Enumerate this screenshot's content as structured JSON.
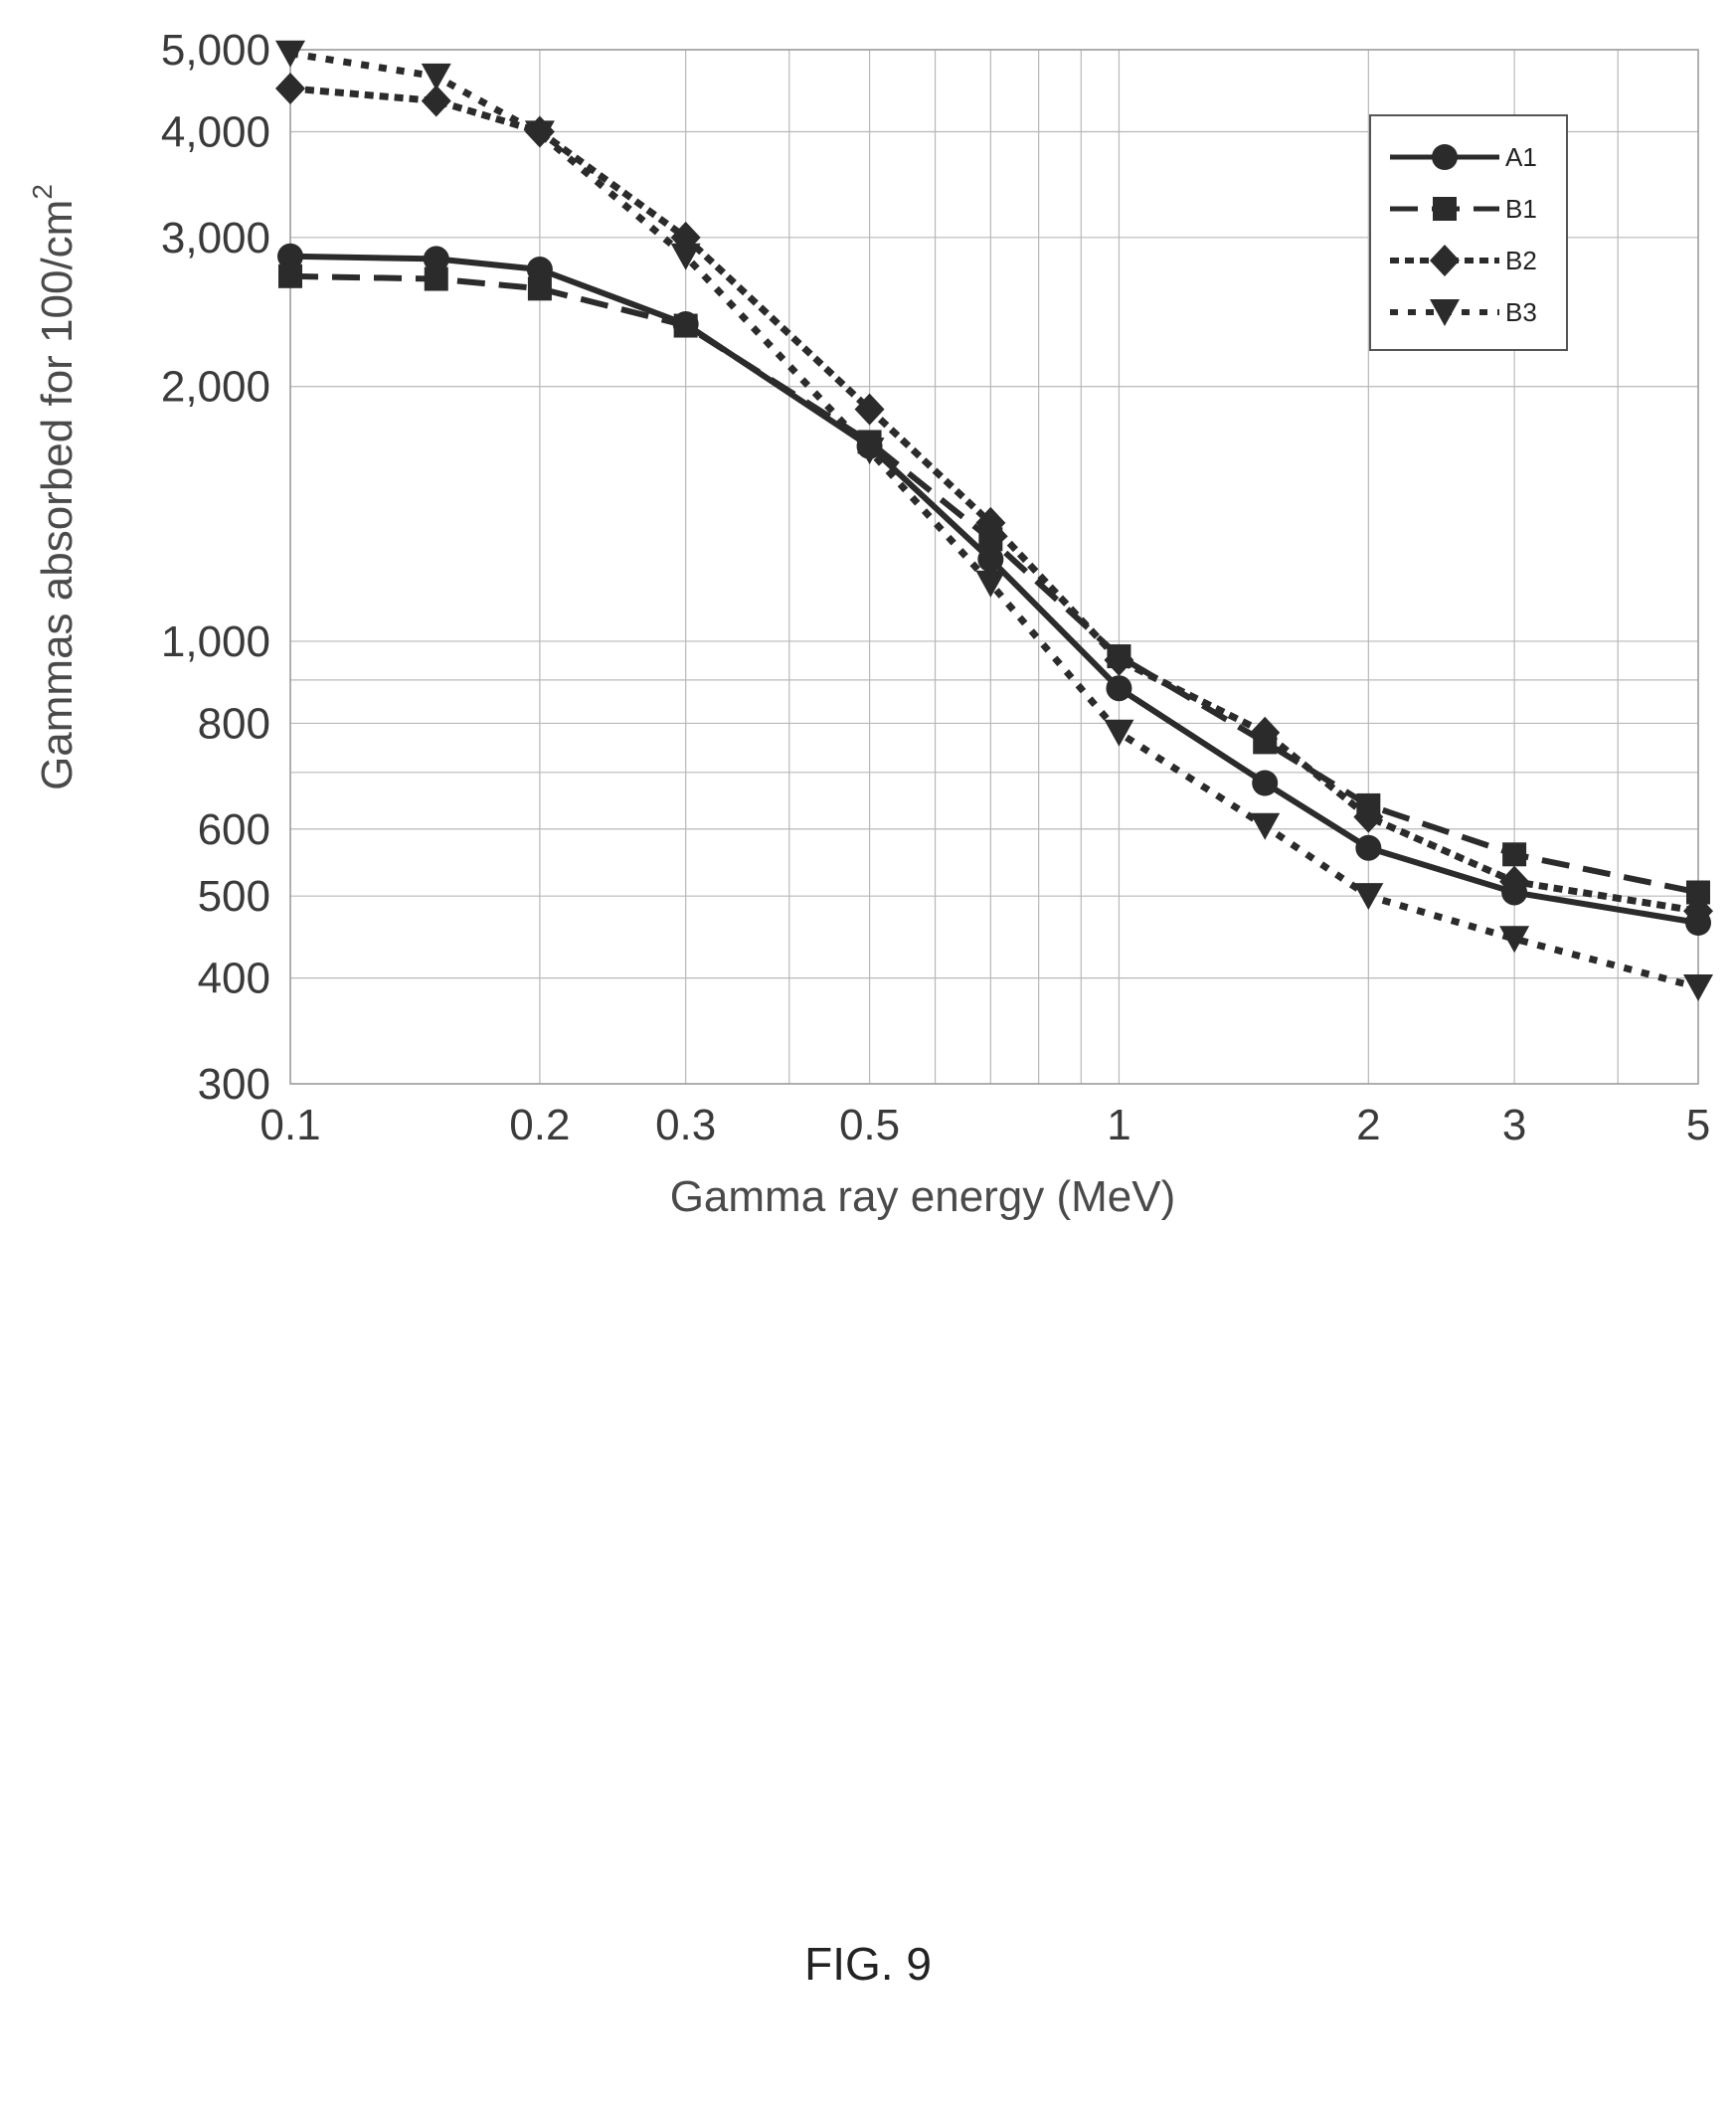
{
  "figure_caption": "FIG. 9",
  "chart_data": {
    "type": "line",
    "xlabel": "Gamma ray energy (MeV)",
    "ylabel": "Gammas absorbed for 100/cm",
    "ylabel_superscript": "2",
    "x_scale": "log",
    "y_scale": "log",
    "xlim": [
      0.1,
      5
    ],
    "ylim": [
      300,
      5000
    ],
    "x_ticks": [
      {
        "value": 0.1,
        "label": "0.1"
      },
      {
        "value": 0.2,
        "label": "0.2"
      },
      {
        "value": 0.3,
        "label": "0.3"
      },
      {
        "value": 0.5,
        "label": "0.5"
      },
      {
        "value": 1,
        "label": "1"
      },
      {
        "value": 2,
        "label": "2"
      },
      {
        "value": 3,
        "label": "3"
      },
      {
        "value": 5,
        "label": "5"
      }
    ],
    "y_ticks": [
      {
        "value": 300,
        "label": "300"
      },
      {
        "value": 400,
        "label": "400"
      },
      {
        "value": 500,
        "label": "500"
      },
      {
        "value": 600,
        "label": "600"
      },
      {
        "value": 800,
        "label": "800"
      },
      {
        "value": 1000,
        "label": "1,000"
      },
      {
        "value": 2000,
        "label": "2,000"
      },
      {
        "value": 3000,
        "label": "3,000"
      },
      {
        "value": 4000,
        "label": "4,000"
      },
      {
        "value": 5000,
        "label": "5,000"
      }
    ],
    "x_minor_grid": [
      0.4,
      0.6,
      0.7,
      0.8,
      0.9,
      4
    ],
    "y_minor_grid": [
      700,
      900
    ],
    "grid": true,
    "legend_position": "top-right",
    "x": [
      0.1,
      0.15,
      0.2,
      0.3,
      0.5,
      0.7,
      1,
      1.5,
      2,
      3,
      5
    ],
    "series": [
      {
        "name": "A1",
        "marker": "circle",
        "line": "solid",
        "color": "#2b2b2b",
        "values": [
          2850,
          2830,
          2750,
          2370,
          1700,
          1250,
          880,
          680,
          570,
          505,
          465
        ]
      },
      {
        "name": "B1",
        "marker": "square",
        "line": "dashed",
        "color": "#2b2b2b",
        "values": [
          2700,
          2680,
          2610,
          2360,
          1720,
          1320,
          960,
          760,
          640,
          560,
          505
        ]
      },
      {
        "name": "B2",
        "marker": "diamond",
        "line": "dotted",
        "color": "#2b2b2b",
        "values": [
          4500,
          4350,
          4000,
          3000,
          1880,
          1380,
          950,
          780,
          620,
          520,
          480
        ]
      },
      {
        "name": "B3",
        "marker": "triangle-down",
        "line": "dotted",
        "color": "#2b2b2b",
        "values": [
          4950,
          4650,
          3980,
          2850,
          1680,
          1170,
          780,
          605,
          500,
          445,
          390
        ]
      }
    ]
  }
}
